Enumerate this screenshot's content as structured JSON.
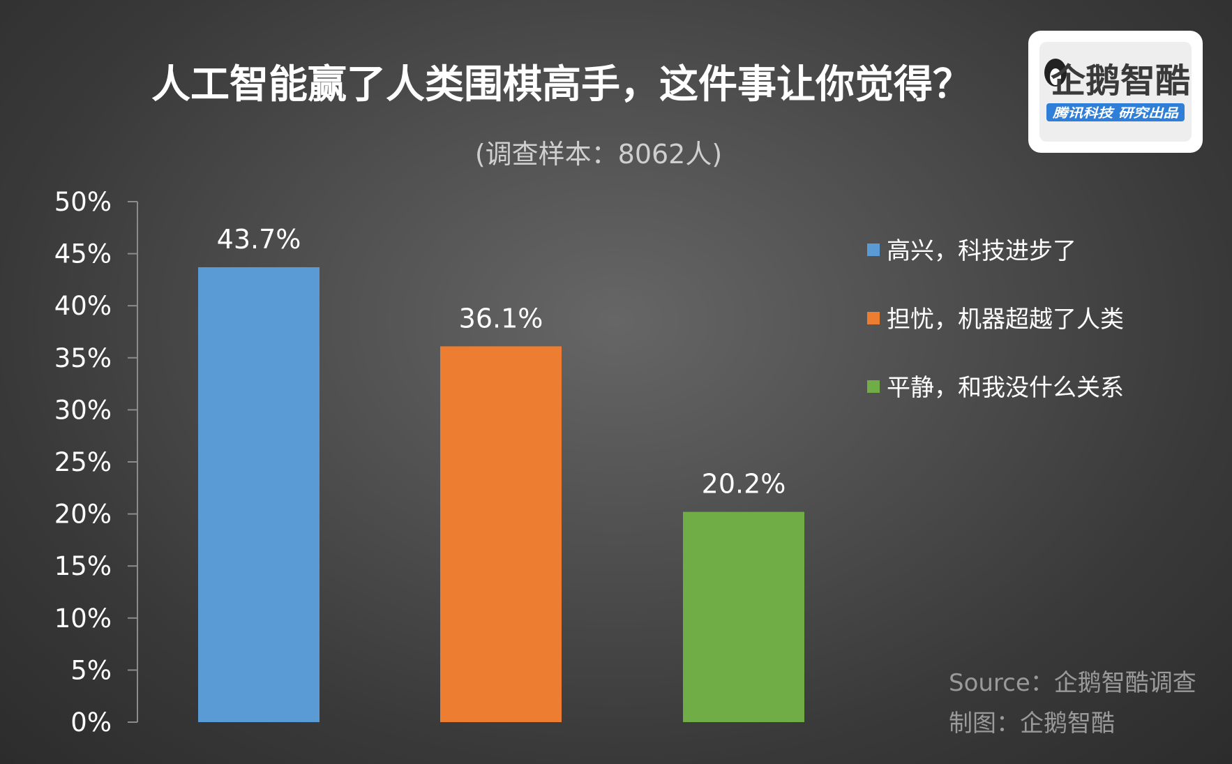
{
  "chart_data": {
    "type": "bar",
    "title": "人工智能赢了人类围棋高手，这件事让你觉得？",
    "subtitle": "(调查样本：8062人)",
    "categories": [
      "高兴，科技进步了",
      "担忧，机器超越了人类",
      "平静，和我没什么关系"
    ],
    "values": [
      43.7,
      36.1,
      20.2
    ],
    "value_labels": [
      "43.7%",
      "36.1%",
      "20.2%"
    ],
    "colors": [
      "#5b9bd5",
      "#ed7d31",
      "#70ad47"
    ],
    "ylim": [
      0,
      50
    ],
    "yticks": [
      0,
      5,
      10,
      15,
      20,
      25,
      30,
      35,
      40,
      45,
      50
    ],
    "ytick_labels": [
      "0%",
      "5%",
      "10%",
      "15%",
      "20%",
      "25%",
      "30%",
      "35%",
      "40%",
      "45%",
      "50%"
    ],
    "grid": false,
    "legend_position": "right"
  },
  "footer": {
    "source": "Source：企鹅智酷调查",
    "credit": "制图：企鹅智酷"
  },
  "logo": {
    "name": "企鹅智酷",
    "tagline": "腾讯科技  研究出品"
  }
}
